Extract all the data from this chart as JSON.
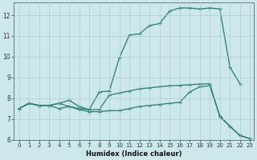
{
  "xlabel": "Humidex (Indice chaleur)",
  "bg_color": "#cce8ea",
  "line_color": "#2a7a6f",
  "grid_color": "#aacdd2",
  "ylim": [
    6,
    12.6
  ],
  "xlim": [
    -0.5,
    23.4
  ],
  "yticks": [
    6,
    7,
    8,
    9,
    10,
    11,
    12
  ],
  "xticks": [
    0,
    1,
    2,
    3,
    4,
    5,
    6,
    7,
    8,
    9,
    10,
    11,
    12,
    13,
    14,
    15,
    16,
    17,
    18,
    19,
    20,
    21,
    22,
    23
  ],
  "line1_x": [
    0,
    1,
    2,
    3,
    4,
    5,
    6,
    7,
    8,
    9,
    10,
    11,
    12,
    13,
    14,
    15,
    16,
    17,
    18,
    19,
    20,
    21,
    22,
    23
  ],
  "line1_y": [
    7.5,
    7.75,
    7.65,
    7.65,
    7.75,
    7.6,
    7.5,
    7.45,
    7.45,
    8.15,
    8.25,
    8.35,
    8.45,
    8.5,
    8.55,
    8.6,
    8.62,
    8.65,
    8.68,
    8.7,
    7.1,
    6.65,
    6.2,
    6.05
  ],
  "line2_x": [
    0,
    1,
    2,
    3,
    4,
    5,
    6,
    7,
    8,
    9,
    10,
    11,
    12,
    13,
    14,
    15,
    16,
    17,
    18,
    19,
    20,
    21,
    22
  ],
  "line2_y": [
    7.5,
    7.75,
    7.65,
    7.65,
    7.75,
    7.9,
    7.6,
    7.45,
    8.3,
    8.35,
    9.95,
    11.05,
    11.1,
    11.5,
    11.6,
    12.2,
    12.35,
    12.35,
    12.3,
    12.35,
    12.3,
    9.5,
    8.7
  ],
  "line3_x": [
    0,
    1,
    2,
    3,
    4,
    5,
    6,
    7,
    8,
    9,
    10,
    11,
    12,
    13,
    14,
    15,
    16,
    17,
    18,
    19,
    20,
    21,
    22,
    23
  ],
  "line3_y": [
    7.5,
    7.75,
    7.65,
    7.65,
    7.5,
    7.6,
    7.45,
    7.35,
    7.35,
    7.4,
    7.4,
    7.5,
    7.6,
    7.65,
    7.7,
    7.75,
    7.8,
    8.3,
    8.55,
    8.6,
    7.15,
    6.65,
    6.2,
    6.05
  ]
}
